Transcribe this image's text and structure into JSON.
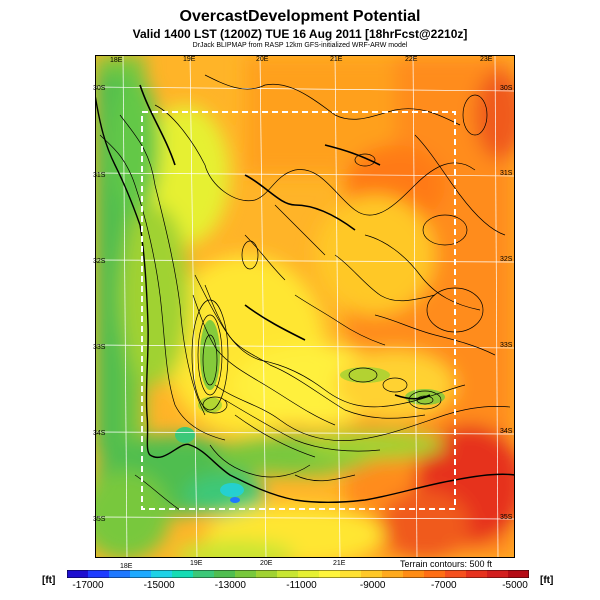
{
  "title": "OvercastDevelopment Potential",
  "subtitle": "Valid 1400 LST (1200Z) TUE 16 Aug 2011 [18hrFcst@2210z]",
  "credit": "DrJack BLIPMAP from RASP 12km GFS-initialized WRF-ARW model",
  "terrain_note": "Terrain contours: 500 ft",
  "unit_left": "[ft]",
  "unit_right": "[ft]",
  "lon_labels_top": [
    "18E",
    "19E",
    "20E",
    "21E",
    "22E",
    "23E"
  ],
  "lon_labels_bottom": [
    "18E",
    "19E",
    "20E",
    "21E"
  ],
  "lat_labels_left": [
    "30S",
    "31S",
    "32S",
    "33S",
    "34S",
    "35S"
  ],
  "lat_labels_right": [
    "30S",
    "31S",
    "32S",
    "33S",
    "34S",
    "35S"
  ],
  "colorbar": {
    "ticks": [
      "-17000",
      "-15000",
      "-13000",
      "-11000",
      "-9000",
      "-7000",
      "-5000"
    ],
    "colors": [
      "#1e0fd0",
      "#1e3cff",
      "#1e78ff",
      "#1eaaff",
      "#1ed2e6",
      "#14dcb4",
      "#3cc878",
      "#50be50",
      "#78c83c",
      "#a0d232",
      "#c8e632",
      "#e6f032",
      "#fff53c",
      "#ffe132",
      "#ffc828",
      "#ffaa1e",
      "#ff8c14",
      "#ff6e14",
      "#f5501e",
      "#e6321e",
      "#d21e1e",
      "#b40a14"
    ]
  }
}
